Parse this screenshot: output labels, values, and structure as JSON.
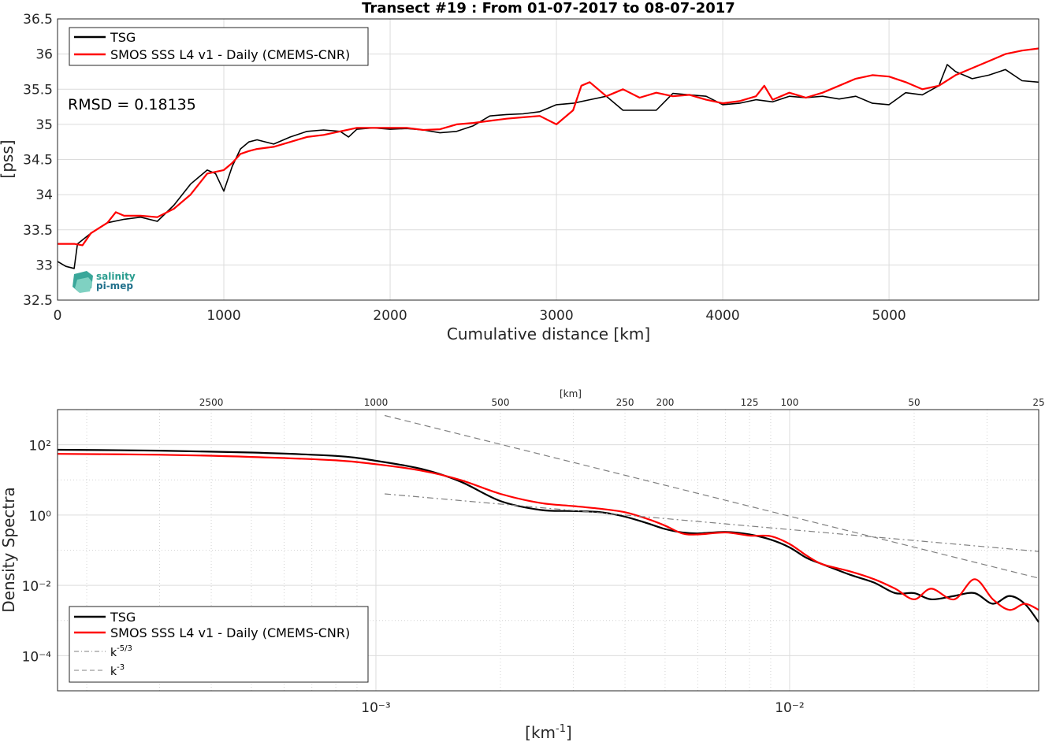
{
  "figure": {
    "title": "Transect #19 : From 01-07-2017 to 08-07-2017"
  },
  "chart_data": [
    {
      "type": "line",
      "title": "Transect #19 : From 01-07-2017 to 08-07-2017",
      "xlabel": "Cumulative distance [km]",
      "ylabel": "[pss]",
      "xlim": [
        0,
        5900
      ],
      "ylim": [
        32.5,
        36.5
      ],
      "xticks": [
        "0",
        "1000",
        "2000",
        "3000",
        "4000",
        "5000"
      ],
      "yticks": [
        "32.5",
        "33",
        "33.5",
        "34",
        "34.5",
        "35",
        "35.5",
        "36",
        "36.5"
      ],
      "grid": true,
      "legend_placement": "top-left",
      "annotation": "RMSD = 0.18135",
      "logo_text": [
        "salinity",
        "pi-mep"
      ],
      "series": [
        {
          "name": "TSG",
          "color": "#000000",
          "x": [
            0,
            50,
            100,
            120,
            200,
            300,
            400,
            500,
            600,
            700,
            800,
            900,
            950,
            1000,
            1050,
            1100,
            1150,
            1200,
            1300,
            1400,
            1500,
            1600,
            1700,
            1750,
            1800,
            1900,
            2000,
            2100,
            2200,
            2300,
            2400,
            2500,
            2600,
            2700,
            2800,
            2900,
            3000,
            3100,
            3200,
            3300,
            3400,
            3500,
            3600,
            3700,
            3800,
            3900,
            4000,
            4100,
            4200,
            4300,
            4400,
            4500,
            4600,
            4700,
            4800,
            4900,
            5000,
            5100,
            5200,
            5300,
            5350,
            5400,
            5500,
            5600,
            5700,
            5800,
            5900
          ],
          "y": [
            33.05,
            32.98,
            32.95,
            33.3,
            33.45,
            33.6,
            33.65,
            33.68,
            33.62,
            33.85,
            34.15,
            34.35,
            34.3,
            34.05,
            34.4,
            34.65,
            34.75,
            34.78,
            34.72,
            34.82,
            34.9,
            34.92,
            34.9,
            34.82,
            34.93,
            34.95,
            34.93,
            34.94,
            34.92,
            34.88,
            34.9,
            34.98,
            35.12,
            35.14,
            35.15,
            35.18,
            35.28,
            35.3,
            35.35,
            35.4,
            35.2,
            35.2,
            35.2,
            35.44,
            35.42,
            35.4,
            35.28,
            35.3,
            35.35,
            35.32,
            35.4,
            35.38,
            35.4,
            35.36,
            35.4,
            35.3,
            35.28,
            35.45,
            35.42,
            35.55,
            35.85,
            35.75,
            35.65,
            35.7,
            35.78,
            35.62,
            35.6
          ]
        },
        {
          "name": "SMOS SSS L4 v1 - Daily (CMEMS-CNR)",
          "color": "#ff0000",
          "x": [
            0,
            50,
            100,
            150,
            200,
            300,
            350,
            400,
            500,
            600,
            700,
            800,
            900,
            1000,
            1050,
            1100,
            1150,
            1200,
            1300,
            1400,
            1500,
            1600,
            1700,
            1800,
            1900,
            2000,
            2100,
            2200,
            2300,
            2400,
            2500,
            2600,
            2700,
            2800,
            2900,
            3000,
            3100,
            3150,
            3200,
            3300,
            3400,
            3500,
            3600,
            3700,
            3800,
            3900,
            4000,
            4100,
            4200,
            4250,
            4300,
            4400,
            4500,
            4600,
            4700,
            4800,
            4900,
            5000,
            5100,
            5200,
            5300,
            5400,
            5500,
            5600,
            5700,
            5800,
            5900
          ],
          "y": [
            33.3,
            33.3,
            33.3,
            33.28,
            33.45,
            33.6,
            33.75,
            33.7,
            33.7,
            33.68,
            33.8,
            34.0,
            34.3,
            34.35,
            34.45,
            34.58,
            34.62,
            34.65,
            34.68,
            34.75,
            34.82,
            34.85,
            34.9,
            34.95,
            34.95,
            34.95,
            34.95,
            34.92,
            34.93,
            35.0,
            35.02,
            35.05,
            35.08,
            35.1,
            35.12,
            35.0,
            35.2,
            35.55,
            35.6,
            35.4,
            35.5,
            35.38,
            35.45,
            35.4,
            35.42,
            35.35,
            35.3,
            35.33,
            35.4,
            35.55,
            35.35,
            35.45,
            35.38,
            35.45,
            35.55,
            35.65,
            35.7,
            35.68,
            35.6,
            35.5,
            35.55,
            35.7,
            35.8,
            35.9,
            36.0,
            36.05,
            36.08
          ]
        }
      ]
    },
    {
      "type": "line",
      "xlabel": "[km⁻¹]",
      "ylabel": "Density Spectra",
      "top_axis_label": "[km]",
      "x_scale": "log",
      "y_scale": "log",
      "xlim": [
        0.00017,
        0.04
      ],
      "ylim": [
        1e-05,
        1000
      ],
      "xticks": [
        "10⁻³",
        "10⁻²"
      ],
      "yticks": [
        "10⁻⁴",
        "10⁻²",
        "10⁰",
        "10²"
      ],
      "top_ticks": [
        2500,
        1000,
        500,
        250,
        200,
        125,
        100,
        50,
        25
      ],
      "grid": true,
      "legend_placement": "bottom-left",
      "series": [
        {
          "name": "TSG",
          "color": "#000000",
          "x": [
            0.00017,
            0.0003,
            0.0005,
            0.0008,
            0.001,
            0.0013,
            0.0016,
            0.002,
            0.0025,
            0.003,
            0.0035,
            0.004,
            0.0045,
            0.005,
            0.0055,
            0.006,
            0.007,
            0.008,
            0.009,
            0.01,
            0.011,
            0.012,
            0.014,
            0.016,
            0.018,
            0.02,
            0.022,
            0.025,
            0.028,
            0.031,
            0.034,
            0.037,
            0.04
          ],
          "y": [
            72,
            68,
            60,
            48,
            35,
            20,
            9,
            2.5,
            1.4,
            1.3,
            1.2,
            0.9,
            0.6,
            0.4,
            0.32,
            0.3,
            0.33,
            0.28,
            0.2,
            0.12,
            0.06,
            0.04,
            0.02,
            0.012,
            0.006,
            0.006,
            0.004,
            0.005,
            0.006,
            0.003,
            0.005,
            0.003,
            0.0009
          ]
        },
        {
          "name": "SMOS SSS L4 v1 - Daily (CMEMS-CNR)",
          "color": "#ff0000",
          "x": [
            0.00017,
            0.0003,
            0.0005,
            0.0008,
            0.001,
            0.0013,
            0.0016,
            0.002,
            0.0025,
            0.003,
            0.0035,
            0.004,
            0.0045,
            0.005,
            0.0055,
            0.006,
            0.007,
            0.008,
            0.009,
            0.01,
            0.011,
            0.012,
            0.014,
            0.016,
            0.018,
            0.02,
            0.022,
            0.025,
            0.028,
            0.031,
            0.034,
            0.037,
            0.04
          ],
          "y": [
            55,
            52,
            45,
            36,
            28,
            18,
            10,
            4,
            2.2,
            1.8,
            1.5,
            1.2,
            0.8,
            0.5,
            0.3,
            0.28,
            0.32,
            0.26,
            0.25,
            0.15,
            0.07,
            0.04,
            0.025,
            0.015,
            0.008,
            0.004,
            0.008,
            0.004,
            0.015,
            0.004,
            0.002,
            0.003,
            0.002
          ]
        },
        {
          "name": "k⁻⁵ᐟ³",
          "legend_text": "k",
          "legend_sup": "-5/3",
          "color": "#808080",
          "dash": "dashdot",
          "x": [
            0.00105,
            0.04
          ],
          "y": [
            4,
            0.092
          ]
        },
        {
          "name": "k⁻³",
          "legend_text": "k",
          "legend_sup": "-3",
          "color": "#808080",
          "dash": "dashed",
          "x": [
            0.00105,
            0.04
          ],
          "y": [
            680,
            0.016
          ]
        }
      ]
    }
  ]
}
